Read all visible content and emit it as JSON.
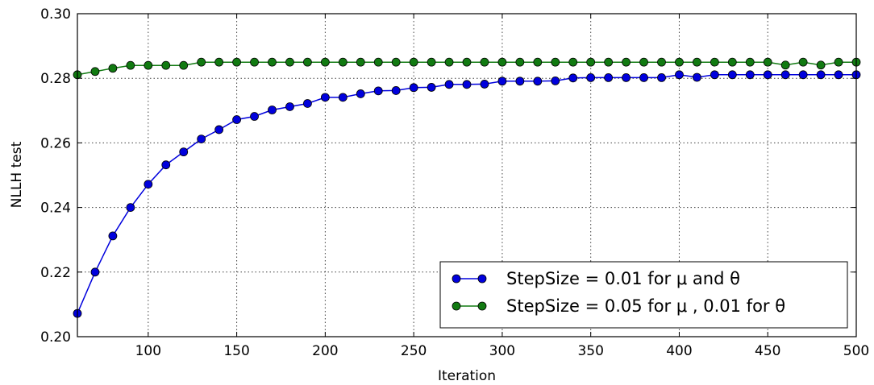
{
  "chart_data": {
    "type": "line",
    "title": "",
    "xlabel": "Iteration",
    "ylabel": "NLLH test",
    "xlim": [
      60,
      500
    ],
    "ylim": [
      0.2,
      0.3
    ],
    "x_ticks": [
      100,
      150,
      200,
      250,
      300,
      350,
      400,
      450,
      500
    ],
    "y_ticks": [
      0.2,
      0.22,
      0.24,
      0.26,
      0.28,
      0.3
    ],
    "x_tick_labels": [
      "100",
      "150",
      "200",
      "250",
      "300",
      "350",
      "400",
      "450",
      "500"
    ],
    "y_tick_labels": [
      "0.20",
      "0.22",
      "0.24",
      "0.26",
      "0.28",
      "0.30"
    ],
    "grid": true,
    "legend_position": "lower-right",
    "x": [
      60,
      70,
      80,
      90,
      100,
      110,
      120,
      130,
      140,
      150,
      160,
      170,
      180,
      190,
      200,
      210,
      220,
      230,
      240,
      250,
      260,
      270,
      280,
      290,
      300,
      310,
      320,
      330,
      340,
      350,
      360,
      370,
      380,
      390,
      400,
      410,
      420,
      430,
      440,
      450,
      460,
      470,
      480,
      490,
      500
    ],
    "series": [
      {
        "name": "StepSize = 0.01 for μ and θ",
        "color": "#0000dd",
        "values": [
          0.2072,
          0.22,
          0.2312,
          0.24,
          0.2472,
          0.2532,
          0.2572,
          0.2612,
          0.2641,
          0.2672,
          0.2682,
          0.2702,
          0.2712,
          0.2722,
          0.2741,
          0.2741,
          0.2752,
          0.2761,
          0.2762,
          0.2771,
          0.2772,
          0.2781,
          0.2781,
          0.2782,
          0.2791,
          0.2791,
          0.2791,
          0.2792,
          0.2801,
          0.2802,
          0.2802,
          0.2802,
          0.2802,
          0.2802,
          0.2811,
          0.2803,
          0.2811,
          0.2811,
          0.2811,
          0.2811,
          0.2811,
          0.2811,
          0.2811,
          0.2811,
          0.2811
        ]
      },
      {
        "name": "StepSize = 0.05 for μ , 0.01 for θ",
        "color": "#117a11",
        "values": [
          0.2811,
          0.2821,
          0.2831,
          0.284,
          0.284,
          0.284,
          0.284,
          0.285,
          0.285,
          0.285,
          0.285,
          0.285,
          0.285,
          0.285,
          0.285,
          0.285,
          0.285,
          0.285,
          0.285,
          0.285,
          0.285,
          0.285,
          0.285,
          0.285,
          0.285,
          0.285,
          0.285,
          0.285,
          0.285,
          0.285,
          0.285,
          0.285,
          0.285,
          0.285,
          0.285,
          0.285,
          0.285,
          0.285,
          0.285,
          0.285,
          0.2841,
          0.285,
          0.2841,
          0.285,
          0.285
        ]
      }
    ]
  }
}
